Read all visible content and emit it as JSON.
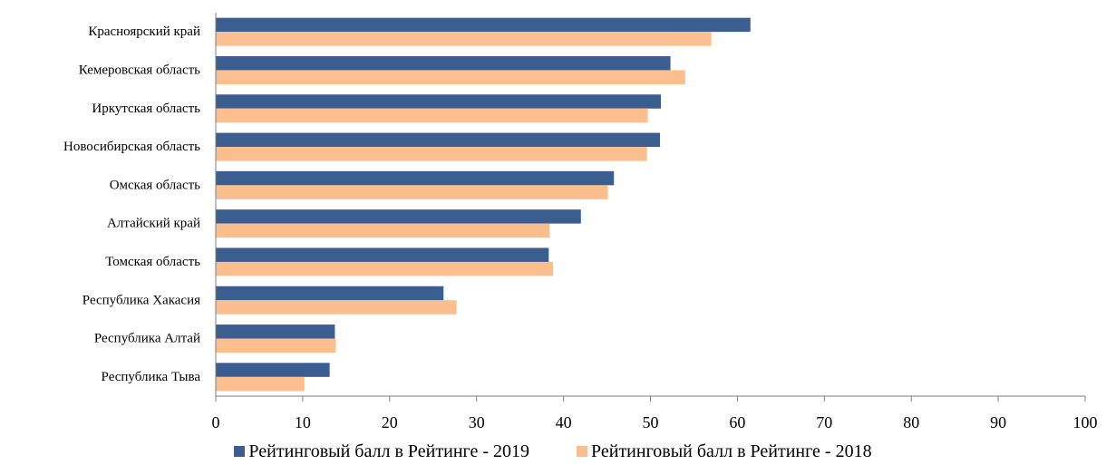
{
  "chart_data": {
    "type": "bar",
    "orientation": "horizontal",
    "title": "",
    "categories": [
      "Красноярский край",
      "Кемеровская область",
      "Иркутская область",
      "Новосибирская область",
      "Омская область",
      "Алтайский край",
      "Томская область",
      "Республика Хакасия",
      "Республика Алтай",
      "Республика Тыва"
    ],
    "series": [
      {
        "name": "Рейтинговый балл в Рейтинге - 2019",
        "color": "#3c5d8f",
        "values": [
          61.5,
          52.3,
          51.2,
          51.1,
          45.8,
          42.0,
          38.3,
          26.2,
          13.7,
          13.1
        ]
      },
      {
        "name": "Рейтинговый балл в Рейтинге - 2018",
        "color": "#fbbf8f",
        "values": [
          57.0,
          54.0,
          49.7,
          49.6,
          45.1,
          38.4,
          38.8,
          27.7,
          13.8,
          10.2
        ]
      }
    ],
    "xlim": [
      0,
      100
    ],
    "xticks": [
      "0",
      "10",
      "20",
      "30",
      "40",
      "50",
      "60",
      "70",
      "80",
      "90",
      "100"
    ],
    "grid": false,
    "legend_position": "bottom"
  }
}
